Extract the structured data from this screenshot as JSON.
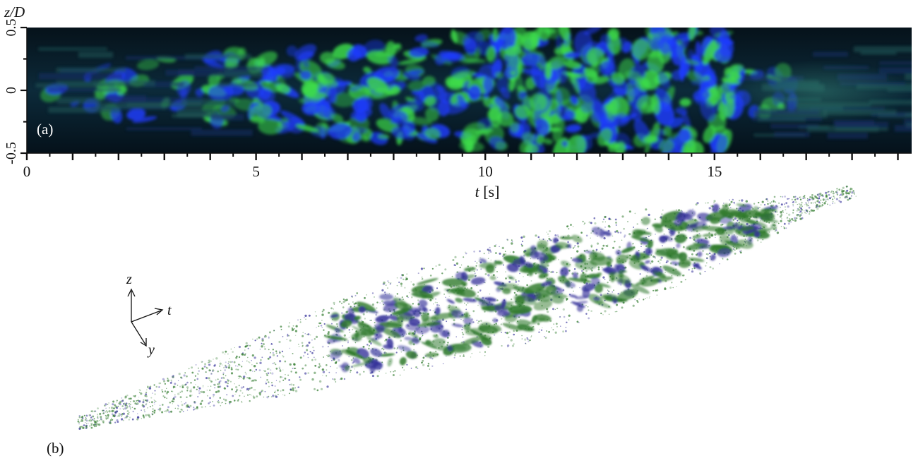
{
  "panel_a": {
    "label": "(a)",
    "y_axis_label": "z/D",
    "y_ticks": [
      "0.5",
      "0",
      "-0.5"
    ],
    "x_axis_label": "t [s]",
    "x_ticks": [
      "0",
      "5",
      "10",
      "15"
    ],
    "x_range": [
      0,
      19.3
    ],
    "y_range": [
      -0.5,
      0.5
    ]
  },
  "panel_b": {
    "label": "(b)",
    "axes": {
      "z": "z",
      "t": "t",
      "y": "y"
    }
  },
  "colors": {
    "background_dark": "#07151f",
    "green": "#3ddc4a",
    "blue": "#1f3dff",
    "render_green": "#2f7a2c",
    "render_blue": "#35329a"
  }
}
